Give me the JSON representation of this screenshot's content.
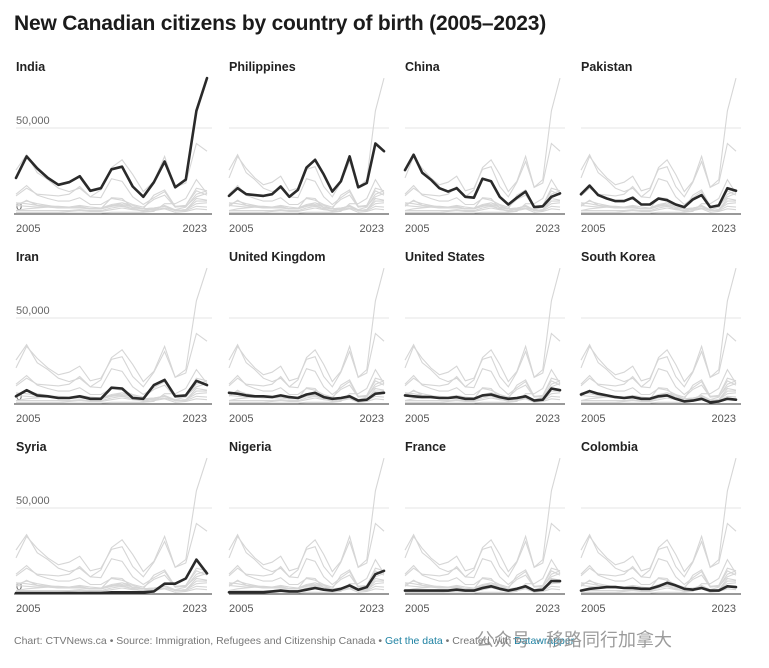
{
  "title": "New Canadian citizens by country of birth (2005–2023)",
  "chart_data": {
    "type": "line",
    "title": "New Canadian citizens by country of birth (2005–2023)",
    "layout": "small-multiples 4x3",
    "x": [
      2005,
      2006,
      2007,
      2008,
      2009,
      2010,
      2011,
      2012,
      2013,
      2014,
      2015,
      2016,
      2017,
      2018,
      2019,
      2020,
      2021,
      2022,
      2023
    ],
    "x_tick_labels": [
      "2005",
      "2023"
    ],
    "ylim": [
      0,
      80000
    ],
    "y_ticks": [
      0,
      50000
    ],
    "y_tick_labels": [
      "0",
      "50,000"
    ],
    "highlight_color": "#2a2a2a",
    "context_color": "#d6d6d6",
    "series": [
      {
        "name": "India",
        "values": [
          21000,
          33500,
          26500,
          21000,
          17000,
          18500,
          22000,
          13500,
          15000,
          26000,
          27500,
          16000,
          10000,
          18500,
          30500,
          15500,
          20000,
          60000,
          79000
        ]
      },
      {
        "name": "Philippines",
        "values": [
          10500,
          15000,
          11500,
          11000,
          10500,
          11500,
          16000,
          10000,
          14000,
          27000,
          31500,
          23000,
          13000,
          19000,
          33500,
          15500,
          18000,
          41000,
          36500
        ]
      },
      {
        "name": "China",
        "values": [
          25500,
          34500,
          24000,
          20000,
          15000,
          13000,
          15000,
          10000,
          9500,
          20500,
          19000,
          10000,
          5500,
          9500,
          13000,
          4000,
          4500,
          10000,
          12000
        ]
      },
      {
        "name": "Pakistan",
        "values": [
          11500,
          16500,
          11000,
          9000,
          7500,
          7500,
          9500,
          5500,
          5500,
          9000,
          8000,
          5500,
          4000,
          8500,
          11000,
          4000,
          5000,
          15000,
          13500
        ]
      },
      {
        "name": "Iran",
        "values": [
          4500,
          8000,
          5000,
          4500,
          3500,
          3500,
          4500,
          3000,
          3000,
          9500,
          9000,
          3500,
          3000,
          11000,
          14000,
          4500,
          5000,
          13500,
          11000
        ]
      },
      {
        "name": "United Kingdom",
        "values": [
          6500,
          6000,
          5000,
          4500,
          4500,
          4000,
          5000,
          4000,
          3500,
          5500,
          6500,
          4000,
          3000,
          3500,
          4500,
          2000,
          2500,
          6000,
          6500
        ]
      },
      {
        "name": "United States",
        "values": [
          5000,
          4500,
          4000,
          4000,
          3500,
          3500,
          4000,
          3000,
          3000,
          5000,
          5500,
          4000,
          3000,
          3500,
          4500,
          2000,
          2500,
          9000,
          8000
        ]
      },
      {
        "name": "South Korea",
        "values": [
          5500,
          7500,
          6000,
          5000,
          4000,
          3500,
          4000,
          3000,
          3000,
          4500,
          5000,
          3000,
          1500,
          2000,
          3000,
          1000,
          1500,
          3000,
          2500
        ]
      },
      {
        "name": "Syria",
        "values": [
          500,
          500,
          500,
          500,
          500,
          500,
          500,
          500,
          500,
          1000,
          1000,
          1000,
          1000,
          1500,
          6000,
          6000,
          9000,
          20000,
          12000
        ]
      },
      {
        "name": "Nigeria",
        "values": [
          1000,
          1000,
          1000,
          1000,
          1000,
          1500,
          2000,
          1500,
          1500,
          2500,
          3500,
          2500,
          2000,
          3000,
          5000,
          2500,
          4000,
          11500,
          13500
        ]
      },
      {
        "name": "France",
        "values": [
          2000,
          2000,
          2000,
          2000,
          2000,
          2000,
          2500,
          2000,
          2000,
          3500,
          4500,
          3000,
          2000,
          3000,
          4500,
          2000,
          2500,
          7500,
          7500
        ]
      },
      {
        "name": "Colombia",
        "values": [
          2000,
          3000,
          3500,
          4000,
          4000,
          3500,
          3500,
          3000,
          3000,
          4500,
          6500,
          5000,
          3000,
          2500,
          3500,
          2000,
          2000,
          4500,
          4000
        ]
      }
    ]
  },
  "footer": {
    "prefix": "Chart: CTVNews.ca • Source: Immigration, Refugees and Citizenship Canada • ",
    "get_data": "Get the data",
    "sep": " • Created with ",
    "tool": "Datawrapper"
  },
  "watermark": "公众号 · 移路同行加拿大"
}
